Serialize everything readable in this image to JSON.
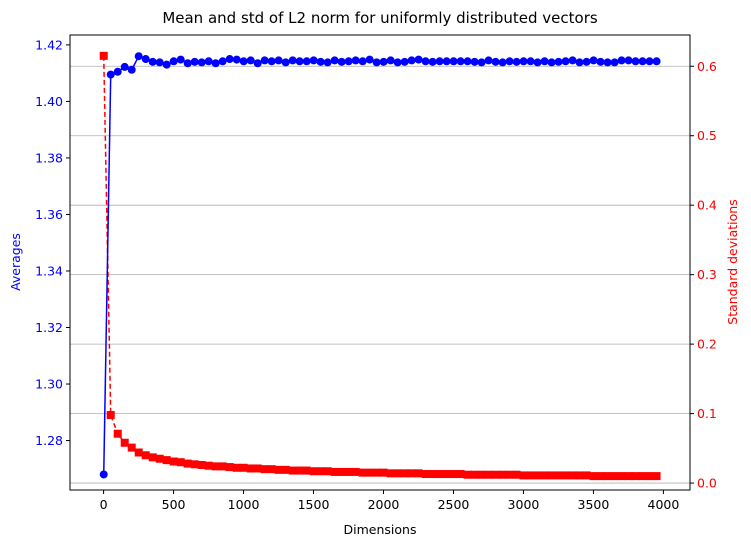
{
  "chart_data": {
    "type": "line",
    "title": "Mean and std of L2 norm for uniformly distributed vectors",
    "xlabel": "Dimensions",
    "ylabel_left": "Averages",
    "ylabel_right": "Standard deviations",
    "xlim": [
      -240,
      4190
    ],
    "ylim_left": [
      1.2625,
      1.4235
    ],
    "ylim_right": [
      -0.01,
      0.645
    ],
    "x_ticks": [
      0,
      500,
      1000,
      1500,
      2000,
      2500,
      3000,
      3500,
      4000
    ],
    "x_tick_labels": [
      "0",
      "500",
      "1000",
      "1500",
      "2000",
      "2500",
      "3000",
      "3500",
      "4000"
    ],
    "y_left_ticks": [
      1.28,
      1.3,
      1.32,
      1.34,
      1.36,
      1.38,
      1.4,
      1.42
    ],
    "y_left_tick_labels": [
      "1.28",
      "1.30",
      "1.32",
      "1.34",
      "1.36",
      "1.38",
      "1.40",
      "1.42"
    ],
    "y_right_ticks": [
      0.0,
      0.1,
      0.2,
      0.3,
      0.4,
      0.5,
      0.6
    ],
    "y_right_tick_labels": [
      "0.0",
      "0.1",
      "0.2",
      "0.3",
      "0.4",
      "0.5",
      "0.6"
    ],
    "grid": "horizontal lines at right-axis ticks",
    "colors": {
      "mean": "#0000ff",
      "std": "#ff0000"
    },
    "x": [
      1,
      51,
      101,
      151,
      201,
      251,
      301,
      351,
      401,
      451,
      501,
      551,
      601,
      651,
      701,
      751,
      801,
      851,
      901,
      951,
      1001,
      1051,
      1101,
      1151,
      1201,
      1251,
      1301,
      1351,
      1401,
      1451,
      1501,
      1551,
      1601,
      1651,
      1701,
      1751,
      1801,
      1851,
      1901,
      1951,
      2001,
      2051,
      2101,
      2151,
      2201,
      2251,
      2301,
      2351,
      2401,
      2451,
      2501,
      2551,
      2601,
      2651,
      2701,
      2751,
      2801,
      2851,
      2901,
      2951,
      3001,
      3051,
      3101,
      3151,
      3201,
      3251,
      3301,
      3351,
      3401,
      3451,
      3501,
      3551,
      3601,
      3651,
      3701,
      3751,
      3801,
      3851,
      3901,
      3951
    ],
    "series": [
      {
        "name": "Averages",
        "axis": "left",
        "marker": "circle",
        "line": "solid",
        "values": [
          1.268,
          1.4095,
          1.4105,
          1.4122,
          1.4112,
          1.416,
          1.415,
          1.414,
          1.4138,
          1.413,
          1.4142,
          1.4148,
          1.4135,
          1.414,
          1.4138,
          1.4142,
          1.4135,
          1.4142,
          1.415,
          1.4148,
          1.4142,
          1.4145,
          1.4135,
          1.4145,
          1.4142,
          1.4145,
          1.4138,
          1.4145,
          1.4142,
          1.4142,
          1.4145,
          1.414,
          1.4138,
          1.4145,
          1.414,
          1.4142,
          1.4145,
          1.4142,
          1.4148,
          1.4138,
          1.414,
          1.4145,
          1.4138,
          1.414,
          1.4145,
          1.4148,
          1.4142,
          1.414,
          1.4142,
          1.4142,
          1.4142,
          1.4142,
          1.4142,
          1.414,
          1.4138,
          1.4145,
          1.414,
          1.4138,
          1.4142,
          1.414,
          1.4142,
          1.4142,
          1.4138,
          1.4142,
          1.4138,
          1.414,
          1.4142,
          1.4145,
          1.4138,
          1.414,
          1.4145,
          1.414,
          1.4138,
          1.4138,
          1.4145,
          1.4145,
          1.4142,
          1.4142,
          1.4142,
          1.4142
        ]
      },
      {
        "name": "Standard deviations",
        "axis": "right",
        "marker": "square",
        "line": "dashed",
        "values": [
          0.615,
          0.098,
          0.071,
          0.058,
          0.051,
          0.044,
          0.04,
          0.037,
          0.035,
          0.033,
          0.031,
          0.03,
          0.028,
          0.027,
          0.026,
          0.025,
          0.024,
          0.024,
          0.023,
          0.022,
          0.022,
          0.021,
          0.021,
          0.02,
          0.02,
          0.019,
          0.019,
          0.018,
          0.018,
          0.018,
          0.017,
          0.017,
          0.017,
          0.016,
          0.016,
          0.016,
          0.016,
          0.015,
          0.015,
          0.015,
          0.015,
          0.014,
          0.014,
          0.014,
          0.014,
          0.014,
          0.013,
          0.013,
          0.013,
          0.013,
          0.013,
          0.013,
          0.012,
          0.012,
          0.012,
          0.012,
          0.012,
          0.012,
          0.012,
          0.012,
          0.011,
          0.011,
          0.011,
          0.011,
          0.011,
          0.011,
          0.011,
          0.011,
          0.011,
          0.011,
          0.01,
          0.01,
          0.01,
          0.01,
          0.01,
          0.01,
          0.01,
          0.01,
          0.01,
          0.01
        ]
      }
    ]
  }
}
